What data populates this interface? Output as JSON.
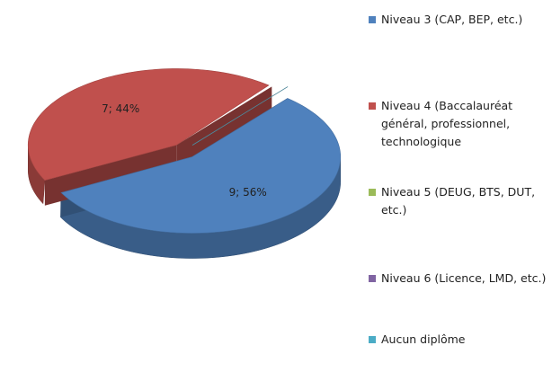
{
  "chart_data": {
    "type": "pie",
    "categories": [
      "Niveau 3 (CAP, BEP, etc.)",
      "Niveau 4 (Baccalauréat général, professionnel, technologique",
      "Niveau 5 (DEUG, BTS, DUT, etc.)",
      "Niveau 6 (Licence, LMD, etc.)",
      "Aucun diplôme"
    ],
    "values": [
      9,
      7,
      0,
      0,
      0
    ],
    "value_labels": [
      "9; 56%",
      "7; 44%",
      null,
      null,
      null
    ],
    "colors": [
      "#4f81bd",
      "#c0504d",
      "#9bbb59",
      "#8064a2",
      "#4bacc6"
    ],
    "legend": "right"
  }
}
